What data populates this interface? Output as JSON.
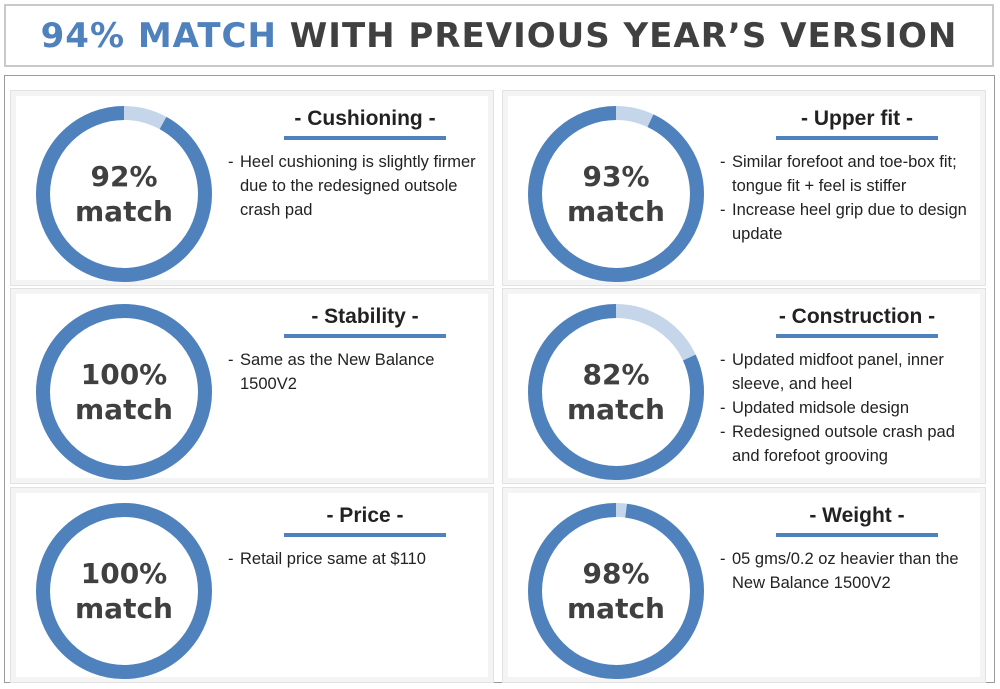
{
  "header": {
    "highlight": "94% MATCH",
    "rest": "WITH PREVIOUS YEAR’S VERSION"
  },
  "colors": {
    "accent": "#4f81bd",
    "track": "#c5d6ea",
    "text": "#404040"
  },
  "chart_data": [
    {
      "type": "pie",
      "title": "- Cushioning -",
      "value": 92,
      "label_value": "92%",
      "label_unit": "match",
      "notes": [
        "Heel cushioning is slightly firmer due to the redesigned outsole crash pad"
      ]
    },
    {
      "type": "pie",
      "title": "- Upper fit -",
      "value": 93,
      "label_value": "93%",
      "label_unit": "match",
      "notes": [
        "Similar forefoot and toe-box fit; tongue fit + feel is stiffer",
        "Increase heel grip due to design update"
      ]
    },
    {
      "type": "pie",
      "title": "- Stability -",
      "value": 100,
      "label_value": "100%",
      "label_unit": "match",
      "notes": [
        "Same as the New Balance 1500V2"
      ]
    },
    {
      "type": "pie",
      "title": "- Construction -",
      "value": 82,
      "label_value": "82%",
      "label_unit": "match",
      "notes": [
        "Updated midfoot panel, inner sleeve, and heel",
        "Updated midsole design",
        "Redesigned outsole crash pad and forefoot grooving"
      ]
    },
    {
      "type": "pie",
      "title": "- Price -",
      "value": 100,
      "label_value": "100%",
      "label_unit": "match",
      "notes": [
        " Retail price same at $110"
      ]
    },
    {
      "type": "pie",
      "title": "- Weight -",
      "value": 98,
      "label_value": "98%",
      "label_unit": "match",
      "notes": [
        "05 gms/0.2 oz heavier than the New Balance 1500V2"
      ]
    }
  ]
}
